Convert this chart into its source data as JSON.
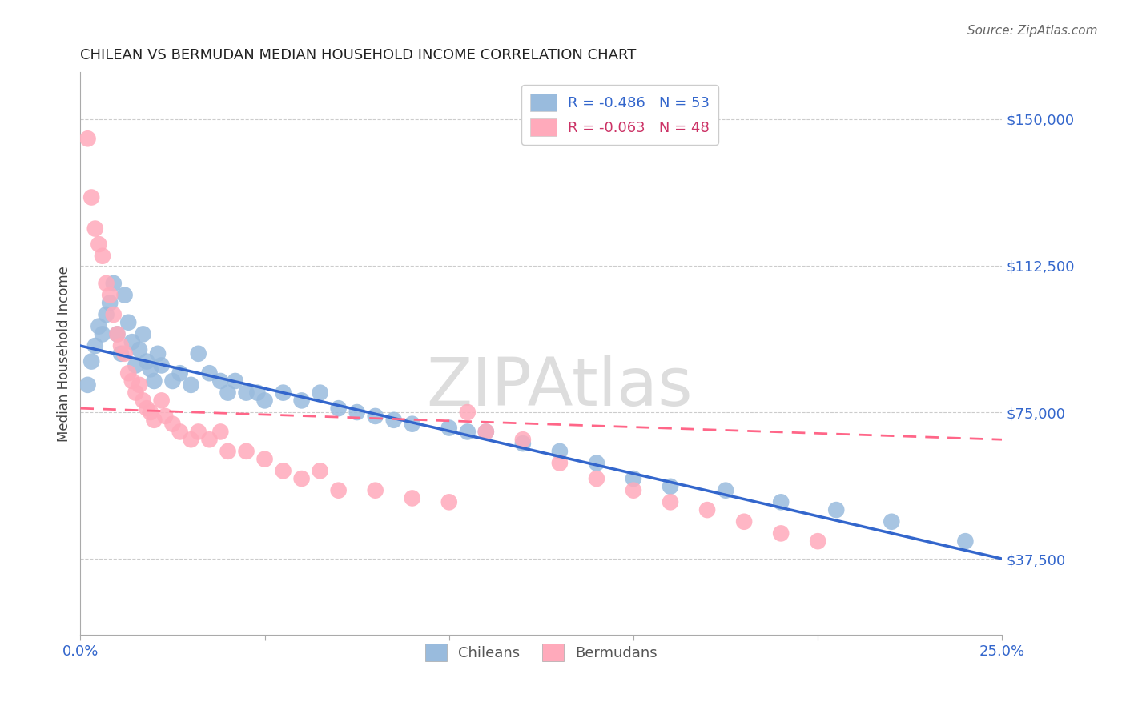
{
  "title": "CHILEAN VS BERMUDAN MEDIAN HOUSEHOLD INCOME CORRELATION CHART",
  "source": "Source: ZipAtlas.com",
  "ylabel": "Median Household Income",
  "xlim": [
    0.0,
    0.25
  ],
  "ylim": [
    18000,
    162000
  ],
  "yticks": [
    37500,
    75000,
    112500,
    150000
  ],
  "ytick_labels": [
    "$37,500",
    "$75,000",
    "$112,500",
    "$150,000"
  ],
  "xticks": [
    0.0,
    0.05,
    0.1,
    0.15,
    0.2,
    0.25
  ],
  "xtick_labels": [
    "0.0%",
    "",
    "",
    "",
    "",
    "25.0%"
  ],
  "grid_color": "#cccccc",
  "background_color": "#ffffff",
  "watermark": "ZIPAtlas",
  "blue_color": "#99bbdd",
  "pink_color": "#ffaabb",
  "line_blue": "#3366cc",
  "line_pink": "#ff6688",
  "text_blue": "#3366cc",
  "text_pink": "#cc3366",
  "legend_line1": "R = -0.486   N = 53",
  "legend_line2": "R = -0.063   N = 48",
  "chileans_x": [
    0.002,
    0.003,
    0.004,
    0.005,
    0.006,
    0.007,
    0.008,
    0.009,
    0.01,
    0.011,
    0.012,
    0.013,
    0.014,
    0.015,
    0.016,
    0.017,
    0.018,
    0.019,
    0.02,
    0.021,
    0.022,
    0.025,
    0.027,
    0.03,
    0.032,
    0.035,
    0.038,
    0.04,
    0.042,
    0.045,
    0.048,
    0.05,
    0.055,
    0.06,
    0.065,
    0.07,
    0.075,
    0.08,
    0.085,
    0.09,
    0.1,
    0.105,
    0.11,
    0.12,
    0.13,
    0.14,
    0.15,
    0.16,
    0.175,
    0.19,
    0.205,
    0.22,
    0.24
  ],
  "chileans_y": [
    82000,
    88000,
    92000,
    97000,
    95000,
    100000,
    103000,
    108000,
    95000,
    90000,
    105000,
    98000,
    93000,
    87000,
    91000,
    95000,
    88000,
    86000,
    83000,
    90000,
    87000,
    83000,
    85000,
    82000,
    90000,
    85000,
    83000,
    80000,
    83000,
    80000,
    80000,
    78000,
    80000,
    78000,
    80000,
    76000,
    75000,
    74000,
    73000,
    72000,
    71000,
    70000,
    70000,
    67000,
    65000,
    62000,
    58000,
    56000,
    55000,
    52000,
    50000,
    47000,
    42000
  ],
  "bermudans_x": [
    0.002,
    0.003,
    0.004,
    0.005,
    0.006,
    0.007,
    0.008,
    0.009,
    0.01,
    0.011,
    0.012,
    0.013,
    0.014,
    0.015,
    0.016,
    0.017,
    0.018,
    0.019,
    0.02,
    0.022,
    0.023,
    0.025,
    0.027,
    0.03,
    0.032,
    0.035,
    0.038,
    0.04,
    0.045,
    0.05,
    0.055,
    0.06,
    0.065,
    0.07,
    0.08,
    0.09,
    0.1,
    0.105,
    0.11,
    0.12,
    0.13,
    0.14,
    0.15,
    0.16,
    0.17,
    0.18,
    0.19,
    0.2
  ],
  "bermudans_y": [
    145000,
    130000,
    122000,
    118000,
    115000,
    108000,
    105000,
    100000,
    95000,
    92000,
    90000,
    85000,
    83000,
    80000,
    82000,
    78000,
    76000,
    75000,
    73000,
    78000,
    74000,
    72000,
    70000,
    68000,
    70000,
    68000,
    70000,
    65000,
    65000,
    63000,
    60000,
    58000,
    60000,
    55000,
    55000,
    53000,
    52000,
    75000,
    70000,
    68000,
    62000,
    58000,
    55000,
    52000,
    50000,
    47000,
    44000,
    42000
  ],
  "blue_line_x": [
    0.0,
    0.25
  ],
  "blue_line_y": [
    92000,
    37500
  ],
  "pink_line_x": [
    0.0,
    0.25
  ],
  "pink_line_y": [
    76000,
    68000
  ]
}
